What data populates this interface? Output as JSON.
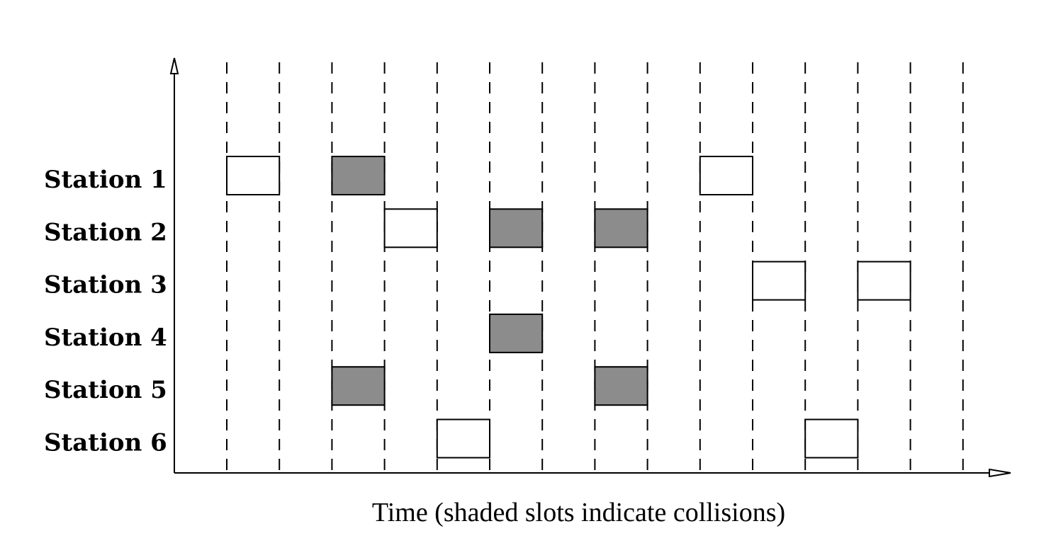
{
  "stations": [
    {
      "label": "Station 1",
      "transmissions": [
        {
          "slot": 1,
          "collision": false
        },
        {
          "slot": 3,
          "collision": true
        },
        {
          "slot": 10,
          "collision": false
        }
      ]
    },
    {
      "label": "Station 2",
      "transmissions": [
        {
          "slot": 4,
          "collision": false
        },
        {
          "slot": 6,
          "collision": true
        },
        {
          "slot": 8,
          "collision": true
        }
      ]
    },
    {
      "label": "Station 3",
      "transmissions": [
        {
          "slot": 11,
          "collision": false
        },
        {
          "slot": 13,
          "collision": false
        }
      ]
    },
    {
      "label": "Station 4",
      "transmissions": [
        {
          "slot": 6,
          "collision": true
        }
      ]
    },
    {
      "label": "Station 5",
      "transmissions": [
        {
          "slot": 3,
          "collision": true
        },
        {
          "slot": 8,
          "collision": true
        }
      ]
    },
    {
      "label": "Station 6",
      "transmissions": [
        {
          "slot": 5,
          "collision": false
        },
        {
          "slot": 12,
          "collision": false
        }
      ]
    }
  ],
  "slot_boundaries": 15,
  "caption": "Time  (shaded slots indicate collisions)",
  "colors": {
    "collision": "#8c8c8c",
    "free": "#ffffff",
    "line": "#000000"
  }
}
